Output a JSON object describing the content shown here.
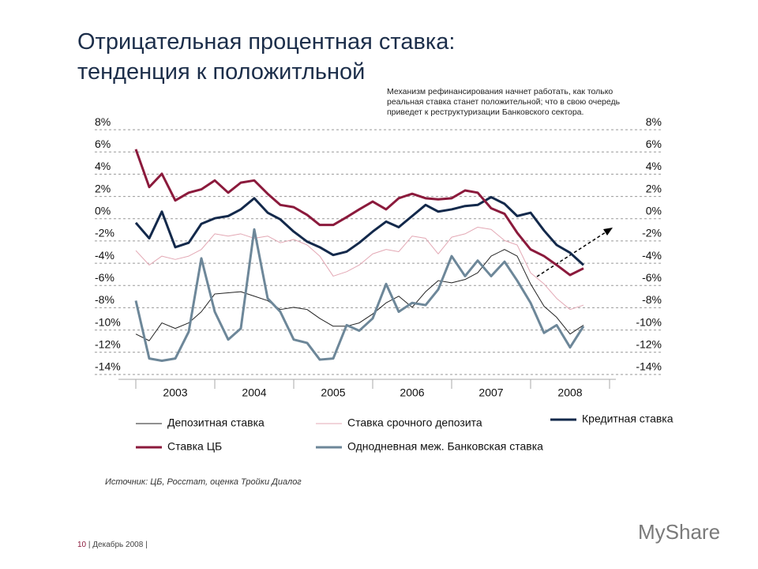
{
  "title": "Отрицательная процентная ставка: тенденция к положитльной",
  "note": "Механизм рефинансирования начнет работать, как только реальная ставка станет положительной; что в свою очередь приведет к реструктуризации Банковского сектора.",
  "source": "Источник: ЦБ, Росстат, оценка Тройки Диалог",
  "footer": {
    "page": "10",
    "date": "Декабрь 2008"
  },
  "logo": "MyShare",
  "chart_data": {
    "type": "line",
    "x": [
      2003,
      2003.17,
      2003.33,
      2003.5,
      2003.67,
      2003.83,
      2004,
      2004.17,
      2004.33,
      2004.5,
      2004.67,
      2004.83,
      2005,
      2005.17,
      2005.33,
      2005.5,
      2005.67,
      2005.83,
      2006,
      2006.17,
      2006.33,
      2006.5,
      2006.67,
      2006.83,
      2007,
      2007.17,
      2007.33,
      2007.5,
      2007.67,
      2007.83,
      2008,
      2008.17,
      2008.33,
      2008.5,
      2008.67
    ],
    "xlim": [
      2003,
      2009
    ],
    "xticks": [
      {
        "value": 2003.5,
        "label": "2003"
      },
      {
        "value": 2004.5,
        "label": "2004"
      },
      {
        "value": 2005.5,
        "label": "2005"
      },
      {
        "value": 2006.5,
        "label": "2006"
      },
      {
        "value": 2007.5,
        "label": "2007"
      },
      {
        "value": 2008.5,
        "label": "2008"
      }
    ],
    "ylim": [
      -15,
      9
    ],
    "yticks": [
      {
        "value": 8,
        "label": "8%"
      },
      {
        "value": 6,
        "label": "6%"
      },
      {
        "value": 4,
        "label": "4%"
      },
      {
        "value": 2,
        "label": "2%"
      },
      {
        "value": 0,
        "label": "0%"
      },
      {
        "value": -2,
        "label": "-2%"
      },
      {
        "value": -4,
        "label": "-4%"
      },
      {
        "value": -6,
        "label": "-6%"
      },
      {
        "value": -8,
        "label": "-8%"
      },
      {
        "value": -10,
        "label": "-10%"
      },
      {
        "value": -12,
        "label": "-12%"
      },
      {
        "value": -14,
        "label": "-14%"
      }
    ],
    "grid": true,
    "series": [
      {
        "name": "Депозитная ставка",
        "color": "#222222",
        "width": 1,
        "values": [
          -11.0,
          -11.6,
          -10.0,
          -10.5,
          -10.0,
          -9.0,
          -7.4,
          -7.3,
          -7.2,
          -7.6,
          -8.0,
          -8.8,
          -8.6,
          -8.8,
          -9.6,
          -10.3,
          -10.3,
          -10.0,
          -9.2,
          -8.2,
          -7.6,
          -8.6,
          -7.2,
          -6.2,
          -6.4,
          -6.1,
          -5.5,
          -4.0,
          -3.4,
          -4.0,
          -6.5,
          -8.5,
          -9.5,
          -11.0,
          -10.2
        ]
      },
      {
        "name": "Ставка срочного депозита",
        "color": "#e3a8b4",
        "width": 1,
        "values": [
          -3.5,
          -4.8,
          -4.0,
          -4.3,
          -4.0,
          -3.4,
          -2.0,
          -2.2,
          -2.0,
          -2.4,
          -2.2,
          -2.8,
          -2.5,
          -3.0,
          -4.0,
          -5.8,
          -5.4,
          -4.8,
          -3.8,
          -3.4,
          -3.6,
          -2.2,
          -2.4,
          -3.8,
          -2.3,
          -2.0,
          -1.4,
          -1.6,
          -2.6,
          -3.0,
          -5.5,
          -6.5,
          -7.8,
          -8.8,
          -8.4
        ]
      },
      {
        "name": "Кредитная ставка",
        "color": "#13294b",
        "width": 3,
        "values": [
          -1.0,
          -2.4,
          0.0,
          -3.2,
          -2.8,
          -1.1,
          -0.6,
          -0.4,
          0.2,
          1.2,
          -0.1,
          -0.7,
          -1.8,
          -2.7,
          -3.2,
          -3.9,
          -3.6,
          -2.8,
          -1.8,
          -0.9,
          -1.4,
          -0.4,
          0.6,
          0.0,
          0.2,
          0.5,
          0.6,
          1.3,
          0.7,
          -0.4,
          -0.1,
          -1.7,
          -3.0,
          -3.7,
          -4.8
        ]
      },
      {
        "name": "Ставка ЦБ",
        "color": "#8b1a3c",
        "width": 3,
        "values": [
          5.6,
          2.2,
          3.4,
          1.0,
          1.7,
          2.0,
          2.8,
          1.7,
          2.6,
          2.8,
          1.6,
          0.6,
          0.4,
          -0.3,
          -1.2,
          -1.2,
          -0.5,
          0.2,
          0.9,
          0.2,
          1.2,
          1.6,
          1.2,
          1.1,
          1.2,
          1.9,
          1.7,
          0.3,
          -0.2,
          -1.9,
          -3.4,
          -4.0,
          -4.8,
          -5.7,
          -5.1
        ]
      },
      {
        "name": "Однодневная меж. Банковская ставка",
        "color": "#6d8799",
        "width": 3,
        "values": [
          -8.0,
          -13.2,
          -13.4,
          -13.2,
          -10.8,
          -4.2,
          -9.0,
          -11.5,
          -10.5,
          -1.6,
          -7.8,
          -9.0,
          -11.5,
          -11.8,
          -13.3,
          -13.2,
          -10.2,
          -10.7,
          -9.6,
          -6.5,
          -9.0,
          -8.2,
          -8.4,
          -7.0,
          -4.0,
          -5.8,
          -4.4,
          -5.8,
          -4.5,
          -6.2,
          -8.2,
          -10.9,
          -10.2,
          -12.2,
          -10.3
        ]
      }
    ]
  }
}
